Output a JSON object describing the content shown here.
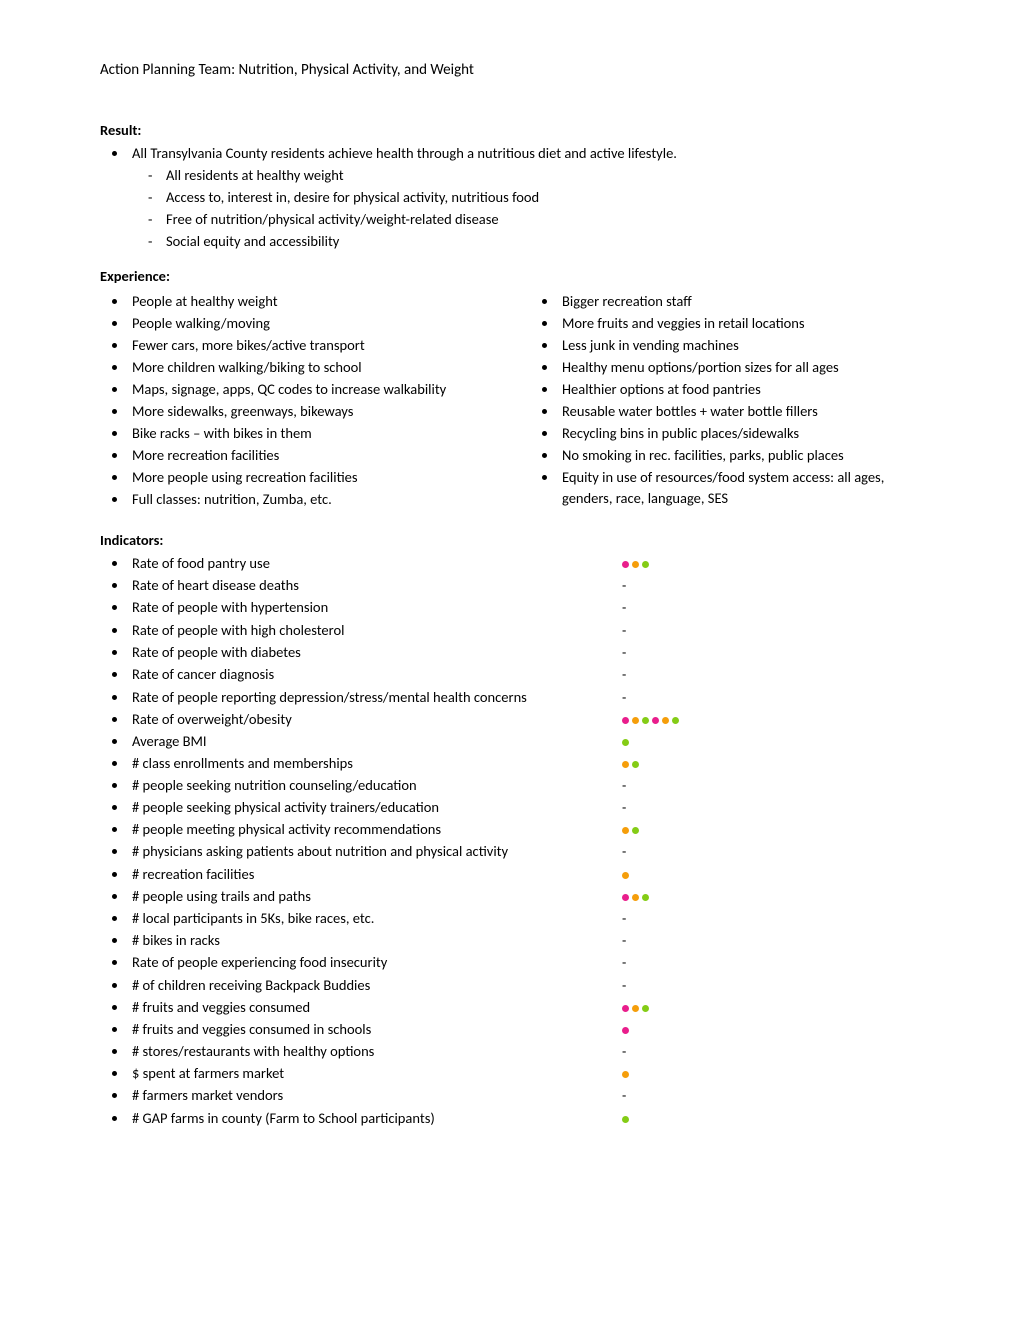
{
  "title": "Action Planning Team: Nutrition, Physical Activity, and Weight",
  "colors": {
    "pink": "#e91e8c",
    "orange": "#f59e0b",
    "green": "#84cc16"
  },
  "result": {
    "heading": "Result:",
    "main": "All Transylvania County residents achieve health through a nutritious diet and active lifestyle.",
    "sub": [
      "All residents at healthy weight",
      "Access to, interest in, desire for physical activity, nutritious food",
      "Free of nutrition/physical activity/weight-related disease",
      "Social equity and accessibility"
    ]
  },
  "experience": {
    "heading": "Experience:",
    "left": [
      "People at healthy weight",
      "People walking/moving",
      "Fewer cars, more bikes/active transport",
      "More children walking/biking to school",
      "Maps, signage, apps, QC codes to increase walkability",
      "More sidewalks, greenways, bikeways",
      "Bike racks – with bikes in them",
      "More recreation facilities",
      "More people using recreation facilities",
      "Full classes: nutrition, Zumba, etc."
    ],
    "right": [
      "Bigger recreation staff",
      "More fruits and veggies in retail locations",
      "Less junk in vending machines",
      "Healthy menu options/portion sizes for all ages",
      "Healthier options at food pantries",
      "Reusable water bottles + water bottle fillers",
      "Recycling bins in public places/sidewalks",
      "No smoking in rec. facilities, parks, public places",
      "Equity in use of resources/food system access: all ages, genders, race, language, SES"
    ]
  },
  "indicators": {
    "heading": "Indicators:",
    "items": [
      {
        "label": "Rate of food pantry use",
        "marks": [
          "pink",
          "orange",
          "green"
        ]
      },
      {
        "label": "Rate of heart disease deaths",
        "marks": [
          "-"
        ]
      },
      {
        "label": "Rate of people with hypertension",
        "marks": [
          "-"
        ]
      },
      {
        "label": "Rate of people with high cholesterol",
        "marks": [
          "-"
        ]
      },
      {
        "label": "Rate of people with diabetes",
        "marks": [
          "-"
        ]
      },
      {
        "label": "Rate of cancer diagnosis",
        "marks": [
          "-"
        ]
      },
      {
        "label": "Rate of people reporting depression/stress/mental health concerns",
        "marks": [
          "-"
        ]
      },
      {
        "label": "Rate of overweight/obesity",
        "marks": [
          "pink",
          "orange",
          "green",
          "pink",
          "orange",
          "green"
        ]
      },
      {
        "label": "Average BMI",
        "marks": [
          "green"
        ]
      },
      {
        "label": "# class enrollments and memberships",
        "marks": [
          "orange",
          "green"
        ]
      },
      {
        "label": "# people seeking nutrition counseling/education",
        "marks": [
          "-"
        ]
      },
      {
        "label": "# people seeking physical activity trainers/education",
        "marks": [
          "-"
        ]
      },
      {
        "label": "# people meeting physical activity recommendations",
        "marks": [
          "orange",
          "green"
        ]
      },
      {
        "label": "# physicians asking patients about nutrition and physical activity",
        "marks": [
          "-"
        ]
      },
      {
        "label": "# recreation facilities",
        "marks": [
          "orange"
        ]
      },
      {
        "label": "# people using trails and paths",
        "marks": [
          "pink",
          "orange",
          "green"
        ]
      },
      {
        "label": "# local participants in 5Ks, bike races, etc.",
        "marks": [
          "-"
        ]
      },
      {
        "label": "# bikes in racks",
        "marks": [
          "-"
        ]
      },
      {
        "label": "Rate of people experiencing food insecurity",
        "marks": [
          "-"
        ]
      },
      {
        "label": "# of children receiving Backpack Buddies",
        "marks": [
          "-"
        ]
      },
      {
        "label": "# fruits and veggies consumed",
        "marks": [
          "pink",
          "orange",
          "green"
        ]
      },
      {
        "label": "# fruits and veggies consumed in schools",
        "marks": [
          "pink"
        ]
      },
      {
        "label": "# stores/restaurants with healthy options",
        "marks": [
          "-"
        ]
      },
      {
        "label": "$ spent at farmers market",
        "marks": [
          "orange"
        ]
      },
      {
        "label": "# farmers market vendors",
        "marks": [
          "-"
        ]
      },
      {
        "label": "# GAP farms in county (Farm to School participants)",
        "marks": [
          "green"
        ]
      }
    ]
  }
}
